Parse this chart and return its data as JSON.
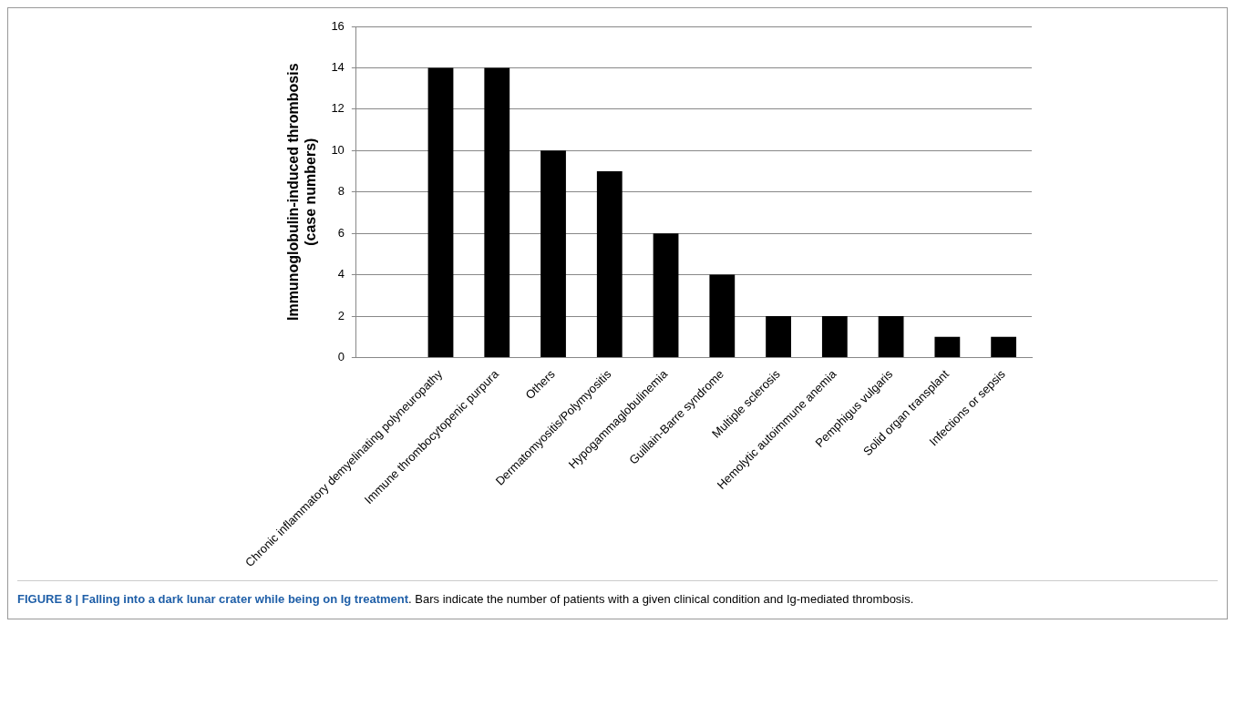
{
  "chart_data": {
    "type": "bar",
    "title": "FIGURE 8 | Falling into a dark lunar crater while being on Ig treatment",
    "annotations": [
      ". Bars indicate the number of patients with a given clinical condition and Ig-mediated thrombosis."
    ],
    "ylabel": "Immunoglobulin-induced thrombosis\n(case numbers)",
    "categories": [
      null,
      "Chronic inflammatory demyelinating polyneuropathy",
      "Immune thrombocytopenic purpura",
      "Others",
      "Dermatomyositis/Polymyositis",
      "Hypogammaglobulinemia",
      "Guillain-Barre syndrome",
      "Multiple sclerosis",
      "Hemolytic autoimmune anemia",
      "Pemphigus vulgaris",
      "Solid organ transplant",
      "Infections or sepsis"
    ],
    "values": [
      null,
      14,
      14,
      10,
      9,
      6,
      4,
      2,
      2,
      2,
      1,
      1
    ],
    "color": "#000000",
    "ylim": [
      0,
      16
    ],
    "yticks": [
      0,
      2,
      4,
      6,
      8,
      10,
      12,
      14,
      16
    ],
    "grid": "y",
    "legend": false
  }
}
